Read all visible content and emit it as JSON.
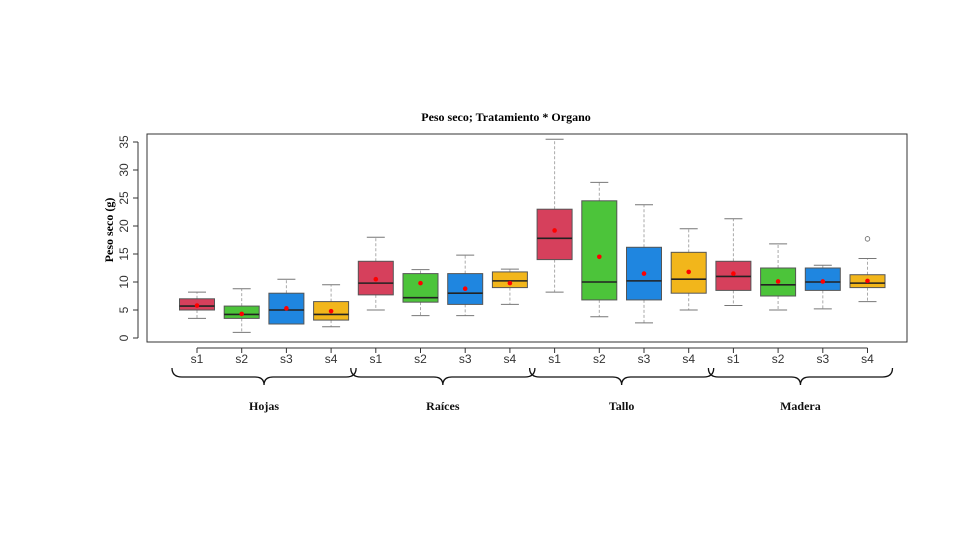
{
  "chart_data": {
    "type": "box",
    "title": "Peso seco; Tratamiento * Organo",
    "ylabel": "Peso seco (g)",
    "xlabel": "",
    "ylim": [
      0,
      35
    ],
    "yticks": [
      0,
      5,
      10,
      15,
      20,
      25,
      30,
      35
    ],
    "grid": false,
    "series_colors": {
      "s1": "#d6405c",
      "s2": "#4cc43a",
      "s3": "#1f86e0",
      "s4": "#f2b61b"
    },
    "mean_color": "#ff0000",
    "groups": [
      {
        "name": "Hojas",
        "boxes": [
          {
            "label": "s1",
            "min": 3.5,
            "q1": 5.0,
            "median": 5.7,
            "q3": 7.0,
            "max": 8.2,
            "mean": 5.8,
            "outliers": []
          },
          {
            "label": "s2",
            "min": 1.0,
            "q1": 3.5,
            "median": 4.2,
            "q3": 5.7,
            "max": 8.8,
            "mean": 4.3,
            "outliers": []
          },
          {
            "label": "s3",
            "min": 2.5,
            "q1": 2.5,
            "median": 5.0,
            "q3": 8.0,
            "max": 10.5,
            "mean": 5.3,
            "outliers": []
          },
          {
            "label": "s4",
            "min": 2.0,
            "q1": 3.2,
            "median": 4.2,
            "q3": 6.5,
            "max": 9.5,
            "mean": 4.8,
            "outliers": []
          }
        ]
      },
      {
        "name": "Raíces",
        "boxes": [
          {
            "label": "s1",
            "min": 5.0,
            "q1": 7.7,
            "median": 9.8,
            "q3": 13.7,
            "max": 18.0,
            "mean": 10.5,
            "outliers": []
          },
          {
            "label": "s2",
            "min": 4.0,
            "q1": 6.4,
            "median": 7.2,
            "q3": 11.5,
            "max": 12.2,
            "mean": 9.8,
            "outliers": []
          },
          {
            "label": "s3",
            "min": 4.0,
            "q1": 6.0,
            "median": 8.0,
            "q3": 11.5,
            "max": 14.8,
            "mean": 8.8,
            "outliers": []
          },
          {
            "label": "s4",
            "min": 6.0,
            "q1": 9.0,
            "median": 10.2,
            "q3": 11.8,
            "max": 12.3,
            "mean": 9.8,
            "outliers": []
          }
        ]
      },
      {
        "name": "Tallo",
        "boxes": [
          {
            "label": "s1",
            "min": 8.2,
            "q1": 14.0,
            "median": 17.8,
            "q3": 23.0,
            "max": 35.5,
            "mean": 19.2,
            "outliers": []
          },
          {
            "label": "s2",
            "min": 3.8,
            "q1": 6.8,
            "median": 10.0,
            "q3": 24.5,
            "max": 27.8,
            "mean": 14.5,
            "outliers": []
          },
          {
            "label": "s3",
            "min": 2.7,
            "q1": 6.8,
            "median": 10.2,
            "q3": 16.2,
            "max": 23.8,
            "mean": 11.5,
            "outliers": []
          },
          {
            "label": "s4",
            "min": 5.0,
            "q1": 8.0,
            "median": 10.5,
            "q3": 15.3,
            "max": 19.5,
            "mean": 11.8,
            "outliers": []
          }
        ]
      },
      {
        "name": "Madera",
        "boxes": [
          {
            "label": "s1",
            "min": 5.8,
            "q1": 8.5,
            "median": 11.0,
            "q3": 13.7,
            "max": 21.3,
            "mean": 11.5,
            "outliers": []
          },
          {
            "label": "s2",
            "min": 5.0,
            "q1": 7.5,
            "median": 9.5,
            "q3": 12.5,
            "max": 16.8,
            "mean": 10.1,
            "outliers": []
          },
          {
            "label": "s3",
            "min": 5.2,
            "q1": 8.5,
            "median": 10.0,
            "q3": 12.5,
            "max": 13.0,
            "mean": 10.1,
            "outliers": []
          },
          {
            "label": "s4",
            "min": 6.5,
            "q1": 9.0,
            "median": 9.8,
            "q3": 11.3,
            "max": 14.2,
            "mean": 10.2,
            "outliers": [
              17.7
            ]
          }
        ]
      }
    ]
  }
}
